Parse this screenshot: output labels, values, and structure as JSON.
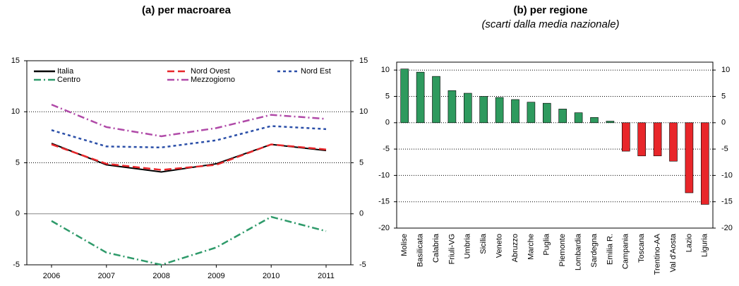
{
  "chart_data": [
    {
      "type": "line",
      "title": "(a) per macroarea",
      "x": [
        2006,
        2007,
        2008,
        2009,
        2010,
        2011
      ],
      "xlim": [
        2005.55,
        2011.45
      ],
      "xticks": [
        2006,
        2007,
        2008,
        2009,
        2010,
        2011
      ],
      "ylim": [
        -5,
        15
      ],
      "yticks": [
        -5,
        0,
        5,
        10,
        15
      ],
      "y2lim": [
        -5,
        15
      ],
      "y2ticks": [
        -5,
        0,
        5,
        10,
        15
      ],
      "grid": true,
      "series": [
        {
          "name": "Italia",
          "color": "#000000",
          "dash": "solid",
          "values": [
            6.9,
            4.8,
            4.1,
            4.9,
            6.8,
            6.2
          ]
        },
        {
          "name": "Nord Ovest",
          "color": "#e8262a",
          "dash": "dashed",
          "values": [
            6.8,
            4.9,
            4.3,
            4.8,
            6.8,
            6.3
          ]
        },
        {
          "name": "Nord Est",
          "color": "#2b4fa8",
          "dash": "dotted",
          "values": [
            8.2,
            6.6,
            6.5,
            7.2,
            8.6,
            8.3
          ]
        },
        {
          "name": "Centro",
          "color": "#2e9a6a",
          "dash": "dashdot",
          "values": [
            -0.7,
            -3.8,
            -5.0,
            -3.3,
            -0.3,
            -1.7
          ]
        },
        {
          "name": "Mezzogiorno",
          "color": "#b04aa8",
          "dash": "dashdot",
          "values": [
            10.7,
            8.5,
            7.6,
            8.4,
            9.7,
            9.3
          ]
        }
      ]
    },
    {
      "type": "bar",
      "title": "(b) per regione",
      "subtitle": "(scarti dalla media nazionale)",
      "categories": [
        "Molise",
        "Basilicata",
        "Calabria",
        "Friuli-VG",
        "Umbria",
        "Sicilia",
        "Veneto",
        "Abruzzo",
        "Marche",
        "Puglia",
        "Piemonte",
        "Lombardia",
        "Sardegna",
        "Emilia R.",
        "Campania",
        "Toscana",
        "Trentino-AA",
        "Val d'Aosta",
        "Lazio",
        "Liguria"
      ],
      "values": [
        10.2,
        9.6,
        8.8,
        6.1,
        5.6,
        5.0,
        4.8,
        4.4,
        3.9,
        3.7,
        2.6,
        1.9,
        1.0,
        0.3,
        -5.4,
        -6.3,
        -6.3,
        -7.3,
        -13.3,
        -15.5
      ],
      "positive_color": "#2e9a5e",
      "negative_color": "#e8262a",
      "ylim": [
        -20,
        11.5
      ],
      "yticks": [
        -20,
        -15,
        -10,
        -5,
        0,
        5,
        10
      ],
      "y2lim": [
        -20,
        11.5
      ],
      "y2ticks": [
        -20,
        -15,
        -10,
        -5,
        0,
        5,
        10
      ],
      "grid": true
    }
  ]
}
